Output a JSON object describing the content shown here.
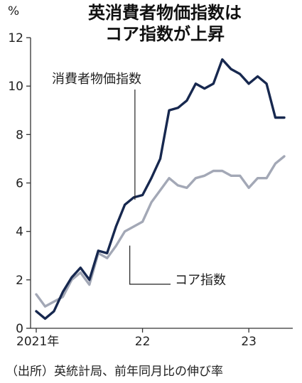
{
  "header": {
    "title_line1": "英消費者物価指数は",
    "title_line2": "コア指数が上昇",
    "unit": "%"
  },
  "source": "（出所）英統計局、前年同月比の伸び率",
  "colors": {
    "headline": "#17284f",
    "core": "#a3a8b6",
    "axis": "#333333"
  },
  "chart_data": {
    "type": "line",
    "title": "英消費者物価指数はコア指数が上昇",
    "ylabel": "%",
    "ylim": [
      0,
      12
    ],
    "y_ticks": [
      0,
      2,
      4,
      6,
      8,
      10,
      12
    ],
    "x": [
      "2021-01",
      "2021-02",
      "2021-03",
      "2021-04",
      "2021-05",
      "2021-06",
      "2021-07",
      "2021-08",
      "2021-09",
      "2021-10",
      "2021-11",
      "2021-12",
      "2022-01",
      "2022-02",
      "2022-03",
      "2022-04",
      "2022-05",
      "2022-06",
      "2022-07",
      "2022-08",
      "2022-09",
      "2022-10",
      "2022-11",
      "2022-12",
      "2023-01",
      "2023-02",
      "2023-03",
      "2023-04",
      "2023-05"
    ],
    "x_ticks": [
      {
        "x": "2021-01",
        "label": "2021年"
      },
      {
        "x": "2022-01",
        "label": "22"
      },
      {
        "x": "2023-01",
        "label": "23"
      }
    ],
    "series": [
      {
        "name": "消費者物価指数",
        "values": [
          0.7,
          0.4,
          0.7,
          1.5,
          2.1,
          2.5,
          2.0,
          3.2,
          3.1,
          4.2,
          5.1,
          5.4,
          5.5,
          6.2,
          7.0,
          9.0,
          9.1,
          9.4,
          10.1,
          9.9,
          10.1,
          11.1,
          10.7,
          10.5,
          10.1,
          10.4,
          10.1,
          8.7,
          8.7
        ]
      },
      {
        "name": "コア指数",
        "values": [
          1.4,
          0.9,
          1.1,
          1.3,
          2.0,
          2.3,
          1.8,
          3.1,
          2.9,
          3.4,
          4.0,
          4.2,
          4.4,
          5.2,
          5.7,
          6.2,
          5.9,
          5.8,
          6.2,
          6.3,
          6.5,
          6.5,
          6.3,
          6.3,
          5.8,
          6.2,
          6.2,
          6.8,
          7.1
        ]
      }
    ],
    "grid": false,
    "legend": "inline annotations with leader lines"
  }
}
